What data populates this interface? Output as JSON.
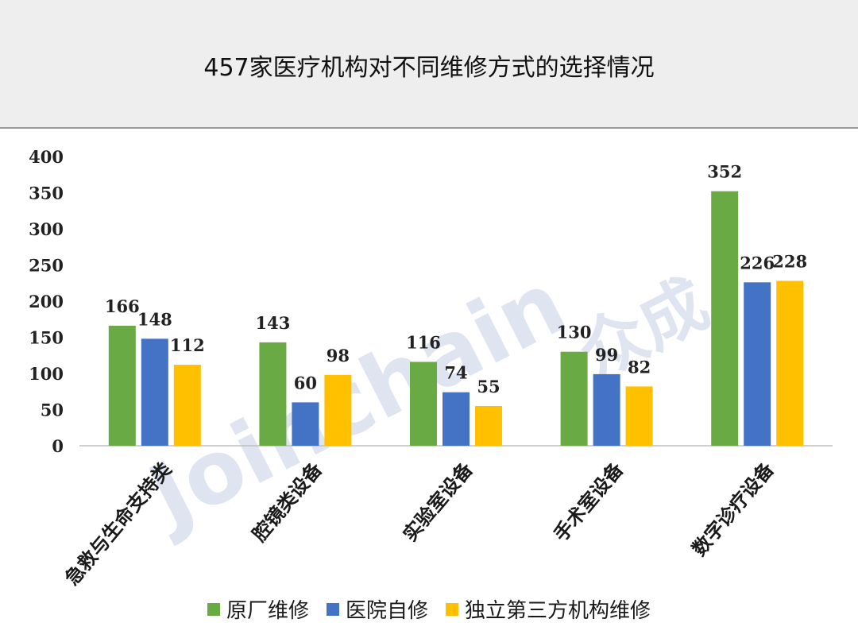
{
  "title": "457家医疗机构对不同维修方式的选择情况",
  "watermark": {
    "text": "Joinchain",
    "cjk": "众成",
    "mark": "®"
  },
  "chart_data": {
    "type": "bar",
    "categories": [
      "急救与生命支持类",
      "腔镜类设备",
      "实验室设备",
      "手术室设备",
      "数字诊疗设备"
    ],
    "series": [
      {
        "name": "原厂维修",
        "color": "#6aaa44",
        "values": [
          166,
          143,
          116,
          130,
          352
        ]
      },
      {
        "name": "医院自修",
        "color": "#4472c4",
        "values": [
          148,
          60,
          74,
          99,
          226
        ]
      },
      {
        "name": "独立第三方机构维修",
        "color": "#ffc000",
        "values": [
          112,
          98,
          55,
          82,
          228
        ]
      }
    ],
    "yticks": [
      "0",
      "50",
      "100",
      "150",
      "200",
      "250",
      "300",
      "350",
      "400"
    ],
    "ylim": [
      0,
      400
    ],
    "grid": false,
    "legend": "bottom"
  }
}
